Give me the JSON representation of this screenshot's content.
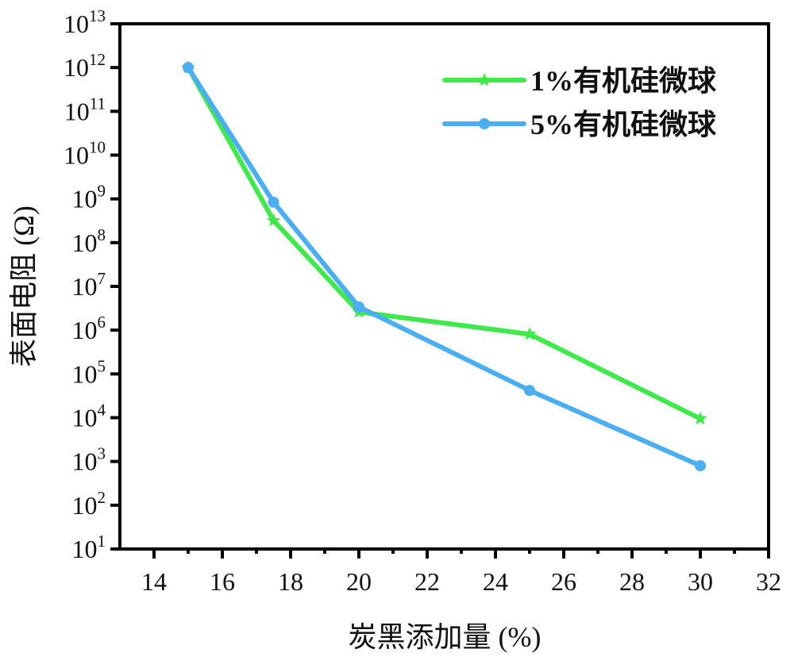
{
  "chart_data": {
    "type": "line",
    "title": "",
    "xlabel": "炭黑添加量 (%)",
    "ylabel": "表面电阻 (Ω)",
    "xlim": [
      13,
      32
    ],
    "ylim": [
      10,
      10000000000000.0
    ],
    "yscale": "log",
    "xticks": [
      14,
      16,
      18,
      20,
      22,
      24,
      26,
      28,
      30,
      32
    ],
    "xtick_labels": [
      "14",
      "16",
      "18",
      "20",
      "22",
      "24",
      "26",
      "28",
      "30",
      "32"
    ],
    "yticks_exponents": [
      1,
      2,
      3,
      4,
      5,
      6,
      7,
      8,
      9,
      10,
      11,
      12,
      13
    ],
    "ytick_base": "10",
    "ytick_exponent_labels": [
      "1",
      "2",
      "3",
      "4",
      "5",
      "6",
      "7",
      "8",
      "9",
      "10",
      "11",
      "12",
      "13"
    ],
    "grid": false,
    "legend_position": "top-right",
    "series": [
      {
        "name": "1%有机硅微球",
        "color": "#3fe84b",
        "marker": "star",
        "x": [
          15,
          17.5,
          20,
          25,
          30
        ],
        "y": [
          1000000000000.0,
          320000000.0,
          2600000.0,
          810000.0,
          9500.0
        ]
      },
      {
        "name": "5%有机硅微球",
        "color": "#4aaef0",
        "marker": "circle",
        "x": [
          15,
          17.5,
          20,
          25,
          30
        ],
        "y": [
          1000000000000.0,
          840000000.0,
          3400000.0,
          42000.0,
          800.0
        ]
      }
    ]
  }
}
